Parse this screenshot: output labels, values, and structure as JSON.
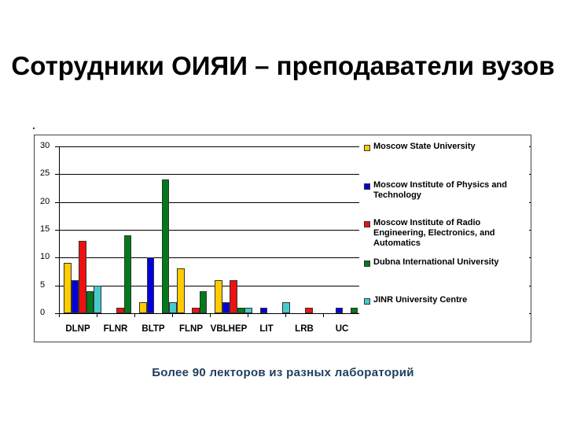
{
  "slide": {
    "title": "Сотрудники ОИЯИ – преподаватели вузов",
    "subtitle": "Более 90 лекторов из разных лабораторий"
  },
  "chart_data": {
    "type": "bar",
    "title": "",
    "xlabel": "",
    "ylabel": "",
    "ylim": [
      0,
      30
    ],
    "yticks": [
      0,
      5,
      10,
      15,
      20,
      25,
      30
    ],
    "grid": true,
    "legend_position": "right",
    "categories": [
      "DLNP",
      "FLNR",
      "BLTP",
      "FLNP",
      "VBLHEP",
      "LIT",
      "LRB",
      "UC"
    ],
    "series": [
      {
        "name": "Moscow State University",
        "color": "#ffcc00",
        "values": [
          9,
          0,
          2,
          8,
          6,
          0,
          0,
          0
        ]
      },
      {
        "name": "Moscow Institute of Physics and Technology",
        "color": "#0000dd",
        "values": [
          6,
          0,
          10,
          0,
          2,
          1,
          0,
          1
        ]
      },
      {
        "name": "Moscow Institute of Radio Engineering, Electronics, and Automatics",
        "color": "#ee1111",
        "values": [
          13,
          1,
          0,
          1,
          6,
          0,
          1,
          0
        ]
      },
      {
        "name": "Dubna International University",
        "color": "#007a1a",
        "values": [
          4,
          14,
          24,
          4,
          1,
          0,
          0,
          1
        ]
      },
      {
        "name": "JINR University Centre",
        "color": "#44cccc",
        "values": [
          5,
          0,
          2,
          0,
          1,
          2,
          0,
          0
        ]
      }
    ]
  }
}
